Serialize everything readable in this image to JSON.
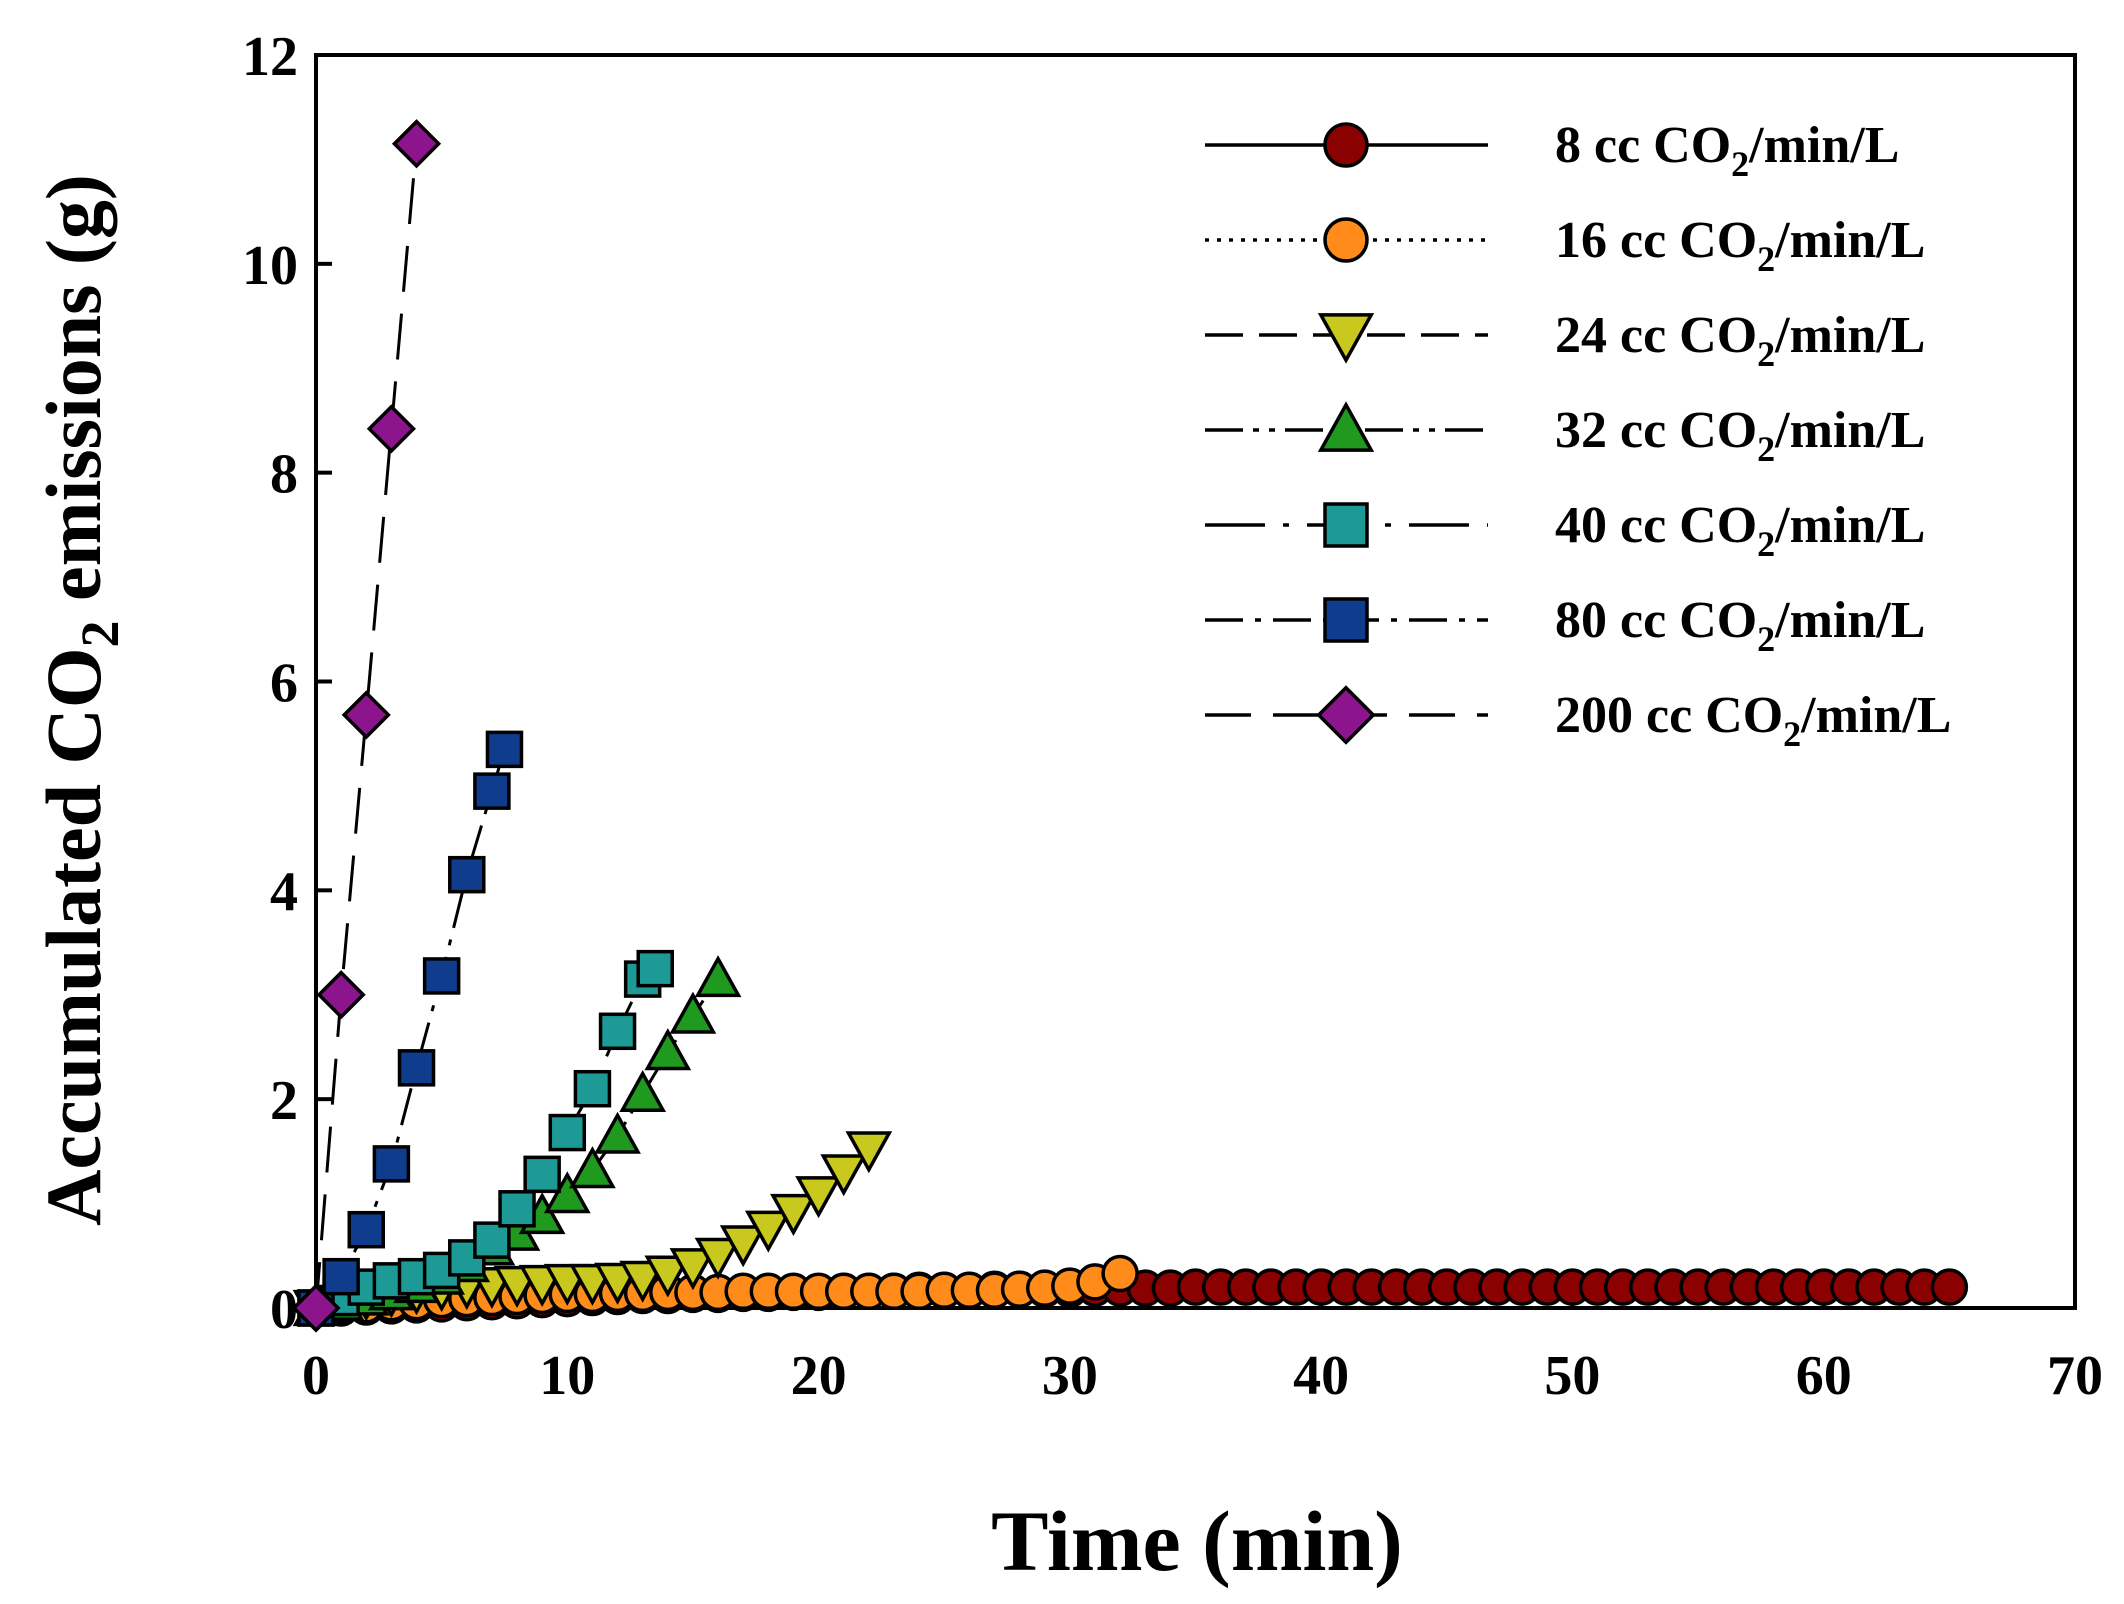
{
  "chart_data": {
    "type": "scatter",
    "title": "",
    "xlabel": "Time (min)",
    "ylabel_parts": [
      "Accumulated CO",
      "2",
      " emissions (g)"
    ],
    "xlim": [
      0,
      70
    ],
    "ylim": [
      0,
      12
    ],
    "xticks": [
      "0",
      "10",
      "20",
      "30",
      "40",
      "50",
      "60",
      "70"
    ],
    "yticks": [
      "0",
      "2",
      "4",
      "6",
      "8",
      "10",
      "12"
    ],
    "legend_position": "top-right",
    "series": [
      {
        "name": "8 cc CO2/min/L",
        "label_parts": [
          "8 cc CO",
          "2",
          "/min/L"
        ],
        "marker": "circle",
        "line": "solid",
        "color": "#8b0000",
        "x": [
          0,
          1,
          2,
          3,
          4,
          5,
          6,
          7,
          8,
          9,
          10,
          11,
          12,
          13,
          14,
          15,
          16,
          17,
          18,
          19,
          20,
          21,
          22,
          23,
          24,
          25,
          26,
          27,
          28,
          29,
          30,
          31,
          32,
          33,
          34,
          35,
          36,
          37,
          38,
          39,
          40,
          41,
          42,
          43,
          44,
          45,
          46,
          47,
          48,
          49,
          50,
          51,
          52,
          53,
          54,
          55,
          56,
          57,
          58,
          59,
          60,
          61,
          62,
          63,
          64,
          65
        ],
        "y": [
          0,
          0,
          0.01,
          0.02,
          0.03,
          0.04,
          0.05,
          0.06,
          0.07,
          0.08,
          0.09,
          0.1,
          0.11,
          0.12,
          0.12,
          0.13,
          0.13,
          0.14,
          0.14,
          0.15,
          0.15,
          0.16,
          0.16,
          0.16,
          0.17,
          0.17,
          0.17,
          0.18,
          0.18,
          0.18,
          0.18,
          0.19,
          0.19,
          0.19,
          0.19,
          0.2,
          0.2,
          0.2,
          0.2,
          0.2,
          0.2,
          0.2,
          0.2,
          0.2,
          0.2,
          0.2,
          0.2,
          0.2,
          0.2,
          0.2,
          0.2,
          0.2,
          0.2,
          0.2,
          0.2,
          0.2,
          0.2,
          0.2,
          0.2,
          0.2,
          0.2,
          0.2,
          0.2,
          0.2,
          0.2,
          0.2
        ]
      },
      {
        "name": "16 cc CO2/min/L",
        "label_parts": [
          "16 cc CO",
          "2",
          "/min/L"
        ],
        "marker": "circle",
        "line": "dotted",
        "color": "#ff8c1a",
        "x": [
          0,
          1,
          2,
          3,
          4,
          5,
          6,
          7,
          8,
          9,
          10,
          11,
          12,
          13,
          14,
          15,
          16,
          17,
          18,
          19,
          20,
          21,
          22,
          23,
          24,
          25,
          26,
          27,
          28,
          29,
          30,
          31,
          32
        ],
        "y": [
          0,
          0.02,
          0.03,
          0.05,
          0.06,
          0.08,
          0.09,
          0.1,
          0.11,
          0.12,
          0.13,
          0.13,
          0.14,
          0.14,
          0.15,
          0.15,
          0.15,
          0.16,
          0.16,
          0.16,
          0.16,
          0.16,
          0.16,
          0.16,
          0.16,
          0.17,
          0.17,
          0.17,
          0.18,
          0.19,
          0.21,
          0.25,
          0.33
        ]
      },
      {
        "name": "24 cc CO2/min/L",
        "label_parts": [
          "24 cc CO",
          "2",
          "/min/L"
        ],
        "marker": "triangle-down",
        "line": "dashed",
        "color": "#c8c81e",
        "x": [
          0,
          1,
          2,
          3,
          4,
          5,
          6,
          7,
          8,
          9,
          10,
          11,
          12,
          13,
          14,
          15,
          16,
          17,
          18,
          19,
          20,
          21,
          22
        ],
        "y": [
          0,
          0.05,
          0.1,
          0.13,
          0.16,
          0.19,
          0.21,
          0.22,
          0.23,
          0.24,
          0.25,
          0.25,
          0.26,
          0.28,
          0.33,
          0.4,
          0.5,
          0.62,
          0.76,
          0.92,
          1.09,
          1.3,
          1.52
        ]
      },
      {
        "name": "32 cc CO2/min/L",
        "label_parts": [
          "32 cc CO",
          "2",
          "/min/L"
        ],
        "marker": "triangle-up",
        "line": "dash-dot-dot",
        "color": "#1f9a1f",
        "x": [
          0,
          1,
          2,
          3,
          4,
          5,
          6,
          7,
          8,
          9,
          10,
          11,
          12,
          13,
          14,
          15,
          16
        ],
        "y": [
          0,
          0.05,
          0.1,
          0.15,
          0.22,
          0.3,
          0.42,
          0.58,
          0.72,
          0.88,
          1.08,
          1.32,
          1.65,
          2.05,
          2.45,
          2.8,
          3.15
        ]
      },
      {
        "name": "40 cc CO2/min/L",
        "label_parts": [
          "40 cc CO",
          "2",
          "/min/L"
        ],
        "marker": "square",
        "line": "long-dash-dot",
        "color": "#1e9a96",
        "x": [
          0,
          1,
          2,
          3,
          4,
          5,
          6,
          7,
          8,
          9,
          10,
          11,
          12,
          13,
          13.5
        ],
        "y": [
          0,
          0.1,
          0.2,
          0.26,
          0.3,
          0.36,
          0.48,
          0.65,
          0.95,
          1.28,
          1.68,
          2.1,
          2.65,
          3.15,
          3.25
        ]
      },
      {
        "name": "80 cc CO2/min/L",
        "label_parts": [
          "80 cc CO",
          "2",
          "/min/L"
        ],
        "marker": "square",
        "line": "dash-dot",
        "color": "#0f3c8c",
        "x": [
          0,
          1,
          2,
          3,
          4,
          5,
          6,
          7,
          7.5
        ],
        "y": [
          0,
          0.3,
          0.75,
          1.38,
          2.3,
          3.18,
          4.15,
          4.95,
          5.35
        ]
      },
      {
        "name": "200 cc CO2/min/L",
        "label_parts": [
          "200 cc CO",
          "2",
          "/min/L"
        ],
        "marker": "diamond",
        "line": "long-dash",
        "color": "#8c148c",
        "x": [
          0,
          1,
          2,
          3,
          4
        ],
        "y": [
          0,
          3.0,
          5.68,
          8.42,
          11.15
        ]
      }
    ]
  }
}
